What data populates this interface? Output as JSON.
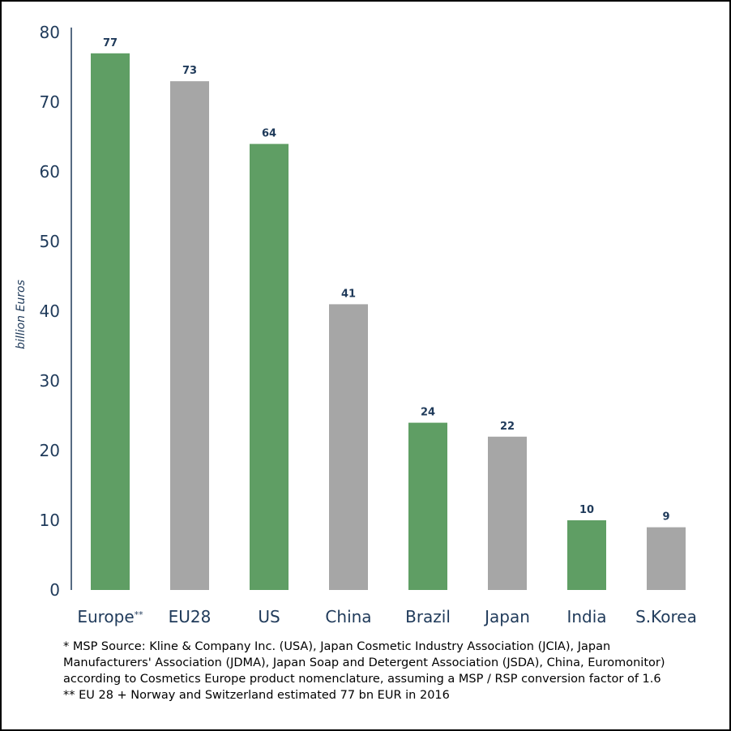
{
  "chart_data": {
    "type": "bar",
    "title": "",
    "xlabel": "",
    "ylabel": "billion Euros",
    "ylim": [
      0,
      80
    ],
    "yticks": [
      0,
      10,
      20,
      30,
      40,
      50,
      60,
      70,
      80
    ],
    "grid": false,
    "categories": [
      "Europe",
      "EU28",
      "US",
      "China",
      "Brazil",
      "Japan",
      "India",
      "S.Korea"
    ],
    "category_suffix": {
      "0": "**"
    },
    "values": [
      77,
      73,
      64,
      41,
      24,
      22,
      10,
      9
    ],
    "colors": [
      "#5f9e64",
      "#a6a6a6",
      "#5f9e64",
      "#a6a6a6",
      "#5f9e64",
      "#a6a6a6",
      "#5f9e64",
      "#a6a6a6"
    ],
    "data_labels": [
      "77",
      "73",
      "64",
      "41",
      "24",
      "22",
      "10",
      "9"
    ]
  },
  "footnotes": [
    "* MSP Source: Kline & Company Inc. (USA), Japan Cosmetic Industry Association (JCIA), Japan",
    "Manufacturers' Association (JDMA), Japan Soap and Detergent Association (JSDA), China, Euromonitor)",
    "according to Cosmetics Europe product nomenclature, assuming a MSP / RSP conversion factor of 1.6",
    "** EU 28 + Norway and Switzerland estimated 77 bn EUR in 2016"
  ]
}
